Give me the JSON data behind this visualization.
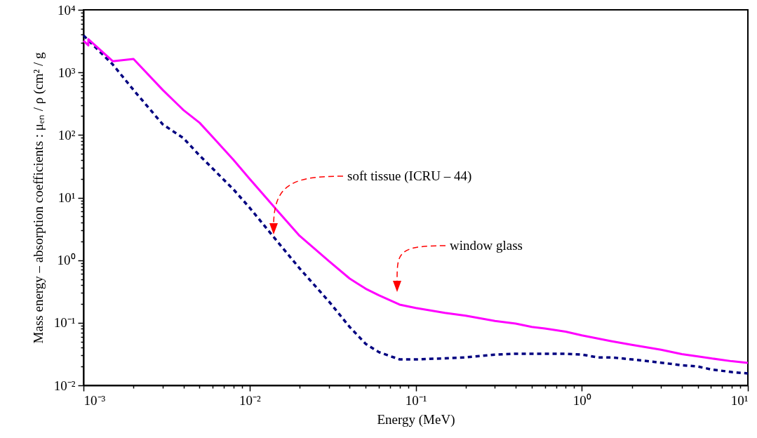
{
  "chart_data": {
    "type": "line",
    "xlabel": "Energy (MeV)",
    "ylabel": "Mass energy – absorption coefficients : μₑₙ / ρ (cm² / g",
    "log": "xy",
    "xlim": [
      0.001,
      10
    ],
    "xticks": [
      {
        "value": 0.001,
        "label": "10⁻³"
      },
      {
        "value": 0.002,
        "label": null
      },
      {
        "value": 0.003,
        "label": null
      },
      {
        "value": 0.004,
        "label": null
      },
      {
        "value": 0.005,
        "label": null
      },
      {
        "value": 0.006,
        "label": null
      },
      {
        "value": 0.007,
        "label": null
      },
      {
        "value": 0.008,
        "label": null
      },
      {
        "value": 0.009,
        "label": null
      },
      {
        "value": 0.01,
        "label": "10⁻²"
      },
      {
        "value": 0.02,
        "label": null
      },
      {
        "value": 0.03,
        "label": null
      },
      {
        "value": 0.04,
        "label": null
      },
      {
        "value": 0.05,
        "label": null
      },
      {
        "value": 0.06,
        "label": null
      },
      {
        "value": 0.07,
        "label": null
      },
      {
        "value": 0.08,
        "label": null
      },
      {
        "value": 0.09,
        "label": null
      },
      {
        "value": 0.1,
        "label": "10⁻¹"
      },
      {
        "value": 0.2,
        "label": null
      },
      {
        "value": 0.3,
        "label": null
      },
      {
        "value": 0.4,
        "label": null
      },
      {
        "value": 0.5,
        "label": null
      },
      {
        "value": 0.6,
        "label": null
      },
      {
        "value": 0.7,
        "label": null
      },
      {
        "value": 0.8,
        "label": null
      },
      {
        "value": 0.9,
        "label": null
      },
      {
        "value": 1,
        "label": "10⁰"
      },
      {
        "value": 2,
        "label": null
      },
      {
        "value": 3,
        "label": null
      },
      {
        "value": 4,
        "label": null
      },
      {
        "value": 5,
        "label": null
      },
      {
        "value": 6,
        "label": null
      },
      {
        "value": 7,
        "label": null
      },
      {
        "value": 8,
        "label": null
      },
      {
        "value": 9,
        "label": null
      },
      {
        "value": 10,
        "label": "10¹"
      }
    ],
    "ylim": [
      0.01,
      10000
    ],
    "yticks": [
      {
        "value": 0.01,
        "label": "10⁻²"
      },
      {
        "value": 0.02,
        "label": null
      },
      {
        "value": 0.03,
        "label": null
      },
      {
        "value": 0.04,
        "label": null
      },
      {
        "value": 0.05,
        "label": null
      },
      {
        "value": 0.06,
        "label": null
      },
      {
        "value": 0.07,
        "label": null
      },
      {
        "value": 0.08,
        "label": null
      },
      {
        "value": 0.09,
        "label": null
      },
      {
        "value": 0.1,
        "label": "10⁻¹"
      },
      {
        "value": 0.2,
        "label": null
      },
      {
        "value": 0.3,
        "label": null
      },
      {
        "value": 0.4,
        "label": null
      },
      {
        "value": 0.5,
        "label": null
      },
      {
        "value": 0.6,
        "label": null
      },
      {
        "value": 0.7,
        "label": null
      },
      {
        "value": 0.8,
        "label": null
      },
      {
        "value": 0.9,
        "label": null
      },
      {
        "value": 1,
        "label": "10⁰"
      },
      {
        "value": 2,
        "label": null
      },
      {
        "value": 3,
        "label": null
      },
      {
        "value": 4,
        "label": null
      },
      {
        "value": 5,
        "label": null
      },
      {
        "value": 6,
        "label": null
      },
      {
        "value": 7,
        "label": null
      },
      {
        "value": 8,
        "label": null
      },
      {
        "value": 9,
        "label": null
      },
      {
        "value": 10,
        "label": "10¹"
      },
      {
        "value": 20,
        "label": null
      },
      {
        "value": 30,
        "label": null
      },
      {
        "value": 40,
        "label": null
      },
      {
        "value": 50,
        "label": null
      },
      {
        "value": 60,
        "label": null
      },
      {
        "value": 70,
        "label": null
      },
      {
        "value": 80,
        "label": null
      },
      {
        "value": 90,
        "label": null
      },
      {
        "value": 100,
        "label": "10²"
      },
      {
        "value": 200,
        "label": null
      },
      {
        "value": 300,
        "label": null
      },
      {
        "value": 400,
        "label": null
      },
      {
        "value": 500,
        "label": null
      },
      {
        "value": 600,
        "label": null
      },
      {
        "value": 700,
        "label": null
      },
      {
        "value": 800,
        "label": null
      },
      {
        "value": 900,
        "label": null
      },
      {
        "value": 1000,
        "label": "10³"
      },
      {
        "value": 2000,
        "label": null
      },
      {
        "value": 3000,
        "label": null
      },
      {
        "value": 4000,
        "label": null
      },
      {
        "value": 5000,
        "label": null
      },
      {
        "value": 6000,
        "label": null
      },
      {
        "value": 7000,
        "label": null
      },
      {
        "value": 8000,
        "label": null
      },
      {
        "value": 9000,
        "label": null
      },
      {
        "value": 10000,
        "label": "10⁴"
      }
    ],
    "series": [
      {
        "color": "#000080",
        "line_style": "dashed",
        "x": [
          0.001,
          0.0015,
          0.002,
          0.003,
          0.004,
          0.005,
          0.006,
          0.008,
          0.01,
          0.015,
          0.02,
          0.03,
          0.04,
          0.05,
          0.06,
          0.08,
          0.1,
          0.15,
          0.2,
          0.3,
          0.4,
          0.5,
          0.6,
          0.8,
          1,
          1.25,
          1.5,
          2,
          3,
          4,
          5,
          6,
          8,
          10
        ],
        "values": [
          3900,
          1340,
          525,
          148,
          89,
          47,
          29,
          13.5,
          6.9,
          1.86,
          0.74,
          0.22,
          0.086,
          0.046,
          0.034,
          0.026,
          0.026,
          0.027,
          0.028,
          0.031,
          0.032,
          0.032,
          0.032,
          0.032,
          0.031,
          0.028,
          0.028,
          0.026,
          0.023,
          0.021,
          0.02,
          0.018,
          0.0163,
          0.0155
        ]
      },
      {
        "color": "#ff00ff",
        "line_style": "solid",
        "x": [
          0.001,
          0.00107,
          0.00107,
          0.0015,
          0.002,
          0.003,
          0.004,
          0.005,
          0.006,
          0.008,
          0.01,
          0.015,
          0.02,
          0.03,
          0.04,
          0.05,
          0.06,
          0.08,
          0.1,
          0.15,
          0.2,
          0.3,
          0.4,
          0.5,
          0.6,
          0.8,
          1,
          1.5,
          2,
          3,
          4,
          5,
          6,
          8,
          10
        ],
        "values": [
          3200,
          2700,
          3400,
          1510,
          1640,
          525,
          250,
          157,
          93,
          40,
          20,
          5.8,
          2.45,
          0.97,
          0.51,
          0.35,
          0.275,
          0.195,
          0.172,
          0.144,
          0.13,
          0.107,
          0.097,
          0.086,
          0.081,
          0.072,
          0.063,
          0.051,
          0.0445,
          0.037,
          0.0315,
          0.029,
          0.027,
          0.0243,
          0.0229
        ]
      }
    ],
    "annotations": [
      "soft tissue (ICRU – 44)",
      "window glass"
    ]
  }
}
